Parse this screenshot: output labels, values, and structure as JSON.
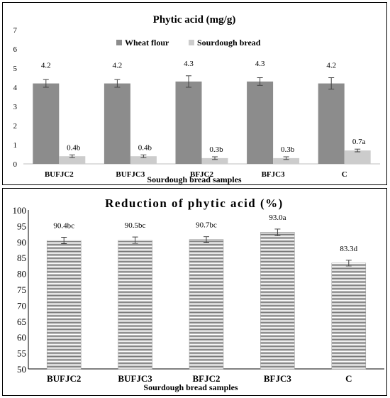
{
  "chart_data": [
    {
      "type": "bar",
      "title": "Phytic acid (mg/g)",
      "xlabel": "Sourdough bread samples",
      "ylabel": "",
      "ylim": [
        0,
        7
      ],
      "yticks": [
        0,
        1,
        2,
        3,
        4,
        5,
        6,
        7
      ],
      "grid": false,
      "legend": "top-center",
      "categories": [
        "BUFJC2",
        "BUFJC3",
        "BFJC2",
        "BFJC3",
        "C"
      ],
      "series": [
        {
          "name": "Wheat flour",
          "color": "#8c8c8c",
          "values": [
            4.2,
            4.2,
            4.3,
            4.3,
            4.2
          ],
          "errors": [
            0.2,
            0.2,
            0.3,
            0.2,
            0.3
          ],
          "labels": [
            "4.2",
            "4.2",
            "4.3",
            "4.3",
            "4.2"
          ]
        },
        {
          "name": "Sourdough bread",
          "color": "#cccccc",
          "values": [
            0.4,
            0.4,
            0.3,
            0.3,
            0.7
          ],
          "errors": [
            0.07,
            0.07,
            0.07,
            0.07,
            0.07
          ],
          "labels": [
            "0.4b",
            "0.4b",
            "0.3b",
            "0.3b",
            "0.7a"
          ]
        }
      ]
    },
    {
      "type": "bar",
      "title": "Reduction of phytic acid (%)",
      "xlabel": "Sourdough bread samples",
      "ylabel": "",
      "ylim": [
        50,
        100
      ],
      "yticks": [
        50,
        55,
        60,
        65,
        70,
        75,
        80,
        85,
        90,
        95,
        100
      ],
      "grid": false,
      "categories": [
        "BUFJC2",
        "BUFJC3",
        "BFJC2",
        "BFJC3",
        "C"
      ],
      "series": [
        {
          "name": "",
          "values": [
            90.4,
            90.5,
            90.7,
            93.0,
            83.3
          ],
          "errors": [
            1.0,
            1.0,
            0.9,
            1.0,
            0.9
          ],
          "labels": [
            "90.4bc",
            "90.5bc",
            "90.7bc",
            "93.0a",
            "83.3d"
          ]
        }
      ]
    }
  ]
}
